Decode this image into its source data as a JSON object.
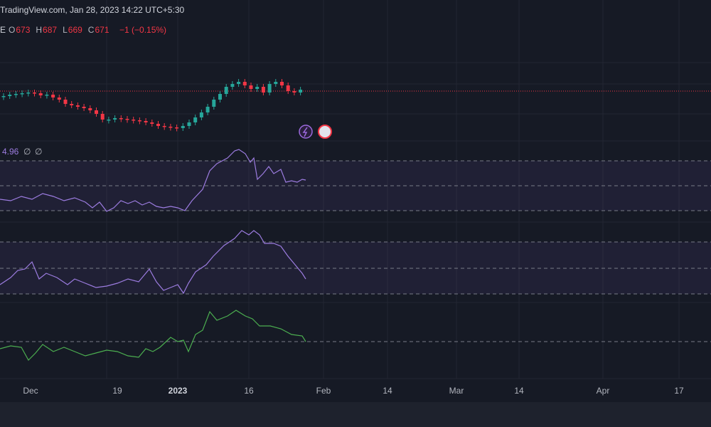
{
  "header": {
    "source": "TradingView.com, Jan 28, 2023 14:22 UTC+5:30",
    "symbol_tail": "E",
    "ohlc": [
      {
        "label": "O",
        "value": "673"
      },
      {
        "label": "H",
        "value": "687"
      },
      {
        "label": "L",
        "value": "669"
      },
      {
        "label": "C",
        "value": "671"
      }
    ],
    "change": "−1 (−0.15%)"
  },
  "indicator": {
    "value": "4.96",
    "extras": [
      "∅",
      "∅"
    ]
  },
  "time_axis": [
    "Dec",
    "19",
    "2023",
    "16",
    "Feb",
    "14",
    "Mar",
    "14",
    "Apr",
    "17"
  ]
}
